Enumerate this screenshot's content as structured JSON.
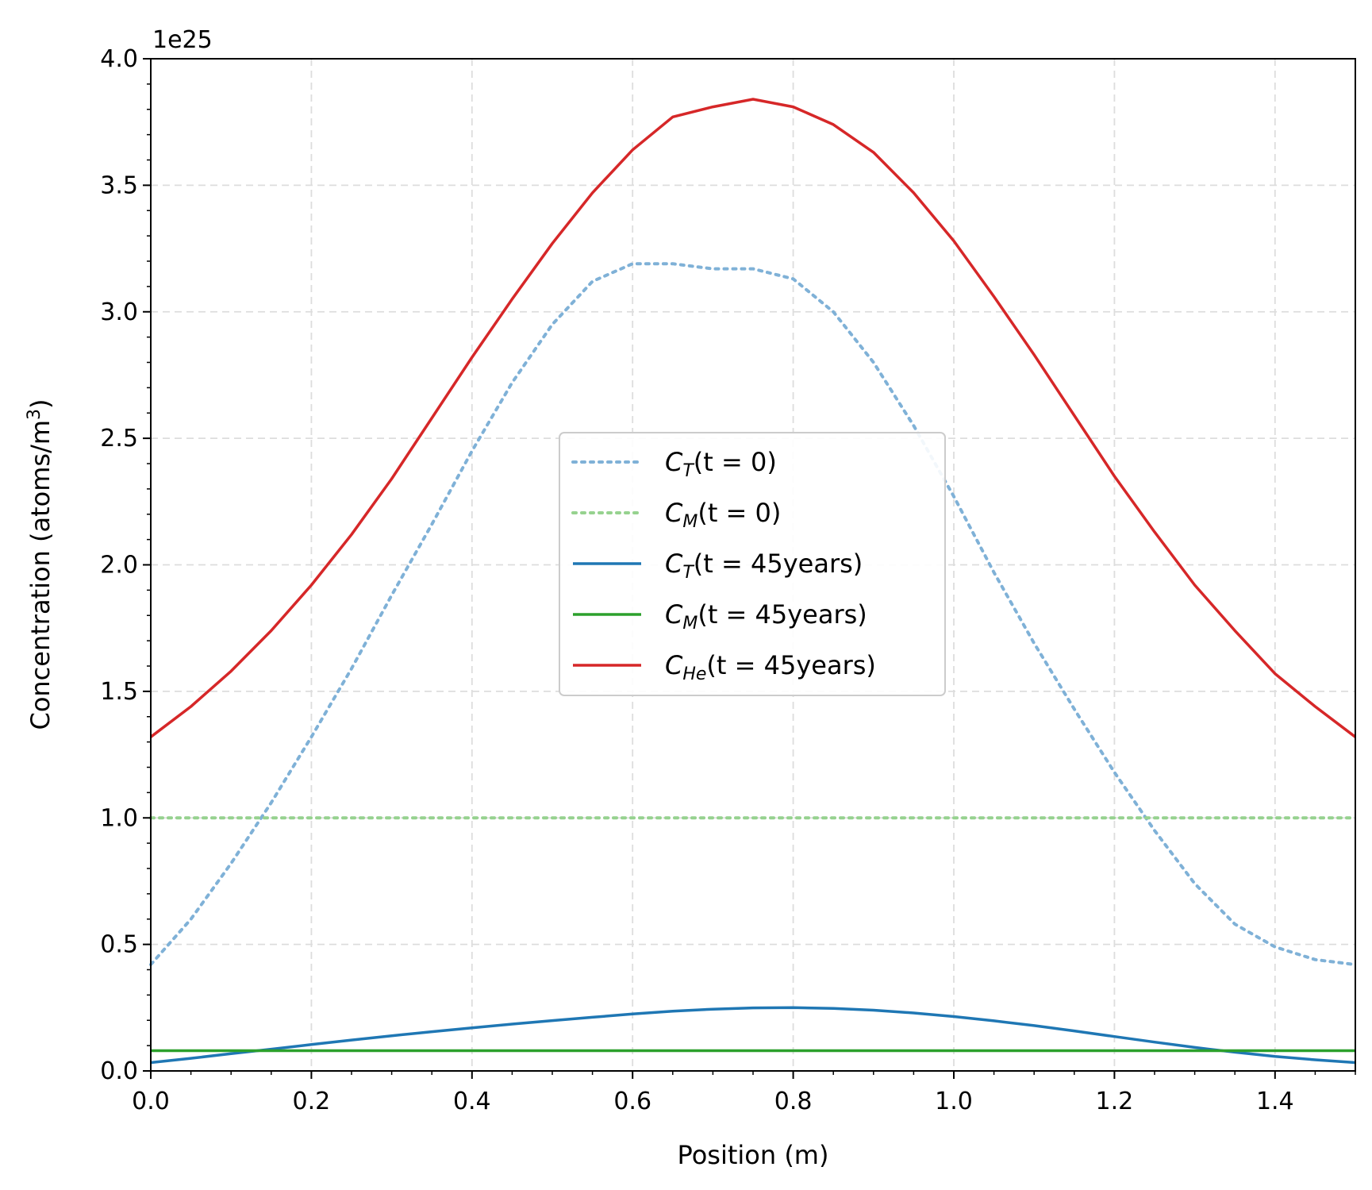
{
  "chart_data": {
    "type": "line",
    "xlabel": "Position (m)",
    "ylabel": "Concentration (atoms/m",
    "ylabel_sup": "3",
    "ylabel_end": ")",
    "offset_text": "1e25",
    "xlim": [
      0.0,
      1.5
    ],
    "ylim": [
      0.0,
      4.0
    ],
    "y_scale_multiplier": 1e+25,
    "x_ticks": [
      "0.0",
      "0.2",
      "0.4",
      "0.6",
      "0.8",
      "1.0",
      "1.2",
      "1.4"
    ],
    "y_ticks": [
      "0.0",
      "0.5",
      "1.0",
      "1.5",
      "2.0",
      "2.5",
      "3.0",
      "3.5",
      "4.0"
    ],
    "grid": true,
    "legend_position": "center",
    "x": [
      0.0,
      0.05,
      0.1,
      0.15,
      0.2,
      0.25,
      0.3,
      0.35,
      0.4,
      0.45,
      0.5,
      0.55,
      0.6,
      0.65,
      0.7,
      0.75,
      0.8,
      0.85,
      0.9,
      0.95,
      1.0,
      1.05,
      1.1,
      1.15,
      1.2,
      1.25,
      1.3,
      1.35,
      1.4,
      1.45,
      1.5
    ],
    "series": [
      {
        "name": "C_T(t=0)",
        "legend": {
          "sym": "C",
          "sub": "T",
          "rest": "(t = 0)"
        },
        "color": "#7fb1d7",
        "style": "dotted",
        "values": [
          0.42,
          0.6,
          0.82,
          1.06,
          1.32,
          1.59,
          1.88,
          2.16,
          2.45,
          2.72,
          2.95,
          3.12,
          3.19,
          3.19,
          3.17,
          3.17,
          3.13,
          3.0,
          2.8,
          2.55,
          2.27,
          1.97,
          1.69,
          1.43,
          1.18,
          0.95,
          0.74,
          0.58,
          0.49,
          0.44,
          0.42
        ]
      },
      {
        "name": "C_M(t=0)",
        "legend": {
          "sym": "C",
          "sub": "M",
          "rest": "(t = 0)"
        },
        "color": "#96d28f",
        "style": "dotted",
        "values": [
          1.0,
          1.0,
          1.0,
          1.0,
          1.0,
          1.0,
          1.0,
          1.0,
          1.0,
          1.0,
          1.0,
          1.0,
          1.0,
          1.0,
          1.0,
          1.0,
          1.0,
          1.0,
          1.0,
          1.0,
          1.0,
          1.0,
          1.0,
          1.0,
          1.0,
          1.0,
          1.0,
          1.0,
          1.0,
          1.0,
          1.0
        ]
      },
      {
        "name": "C_T(t=45years)",
        "legend": {
          "sym": "C",
          "sub": "T",
          "rest": "(t = 45years)"
        },
        "color": "#1f77b4",
        "style": "solid",
        "values": [
          0.033,
          0.05,
          0.068,
          0.086,
          0.104,
          0.122,
          0.139,
          0.155,
          0.17,
          0.185,
          0.199,
          0.212,
          0.225,
          0.236,
          0.244,
          0.249,
          0.25,
          0.247,
          0.24,
          0.229,
          0.215,
          0.198,
          0.179,
          0.158,
          0.136,
          0.114,
          0.093,
          0.074,
          0.057,
          0.044,
          0.033
        ]
      },
      {
        "name": "C_M(t=45years)",
        "legend": {
          "sym": "C",
          "sub": "M",
          "rest": "(t = 45years)"
        },
        "color": "#2ca02c",
        "style": "solid",
        "values": [
          0.08,
          0.08,
          0.08,
          0.08,
          0.08,
          0.08,
          0.08,
          0.08,
          0.08,
          0.08,
          0.08,
          0.08,
          0.08,
          0.08,
          0.08,
          0.08,
          0.08,
          0.08,
          0.08,
          0.08,
          0.08,
          0.08,
          0.08,
          0.08,
          0.08,
          0.08,
          0.08,
          0.08,
          0.08,
          0.08,
          0.08
        ]
      },
      {
        "name": "C_He(t=45years)",
        "legend": {
          "sym": "C",
          "sub": "He",
          "rest": "(t = 45years)"
        },
        "color": "#d62728",
        "style": "solid",
        "values": [
          1.32,
          1.44,
          1.58,
          1.74,
          1.92,
          2.12,
          2.34,
          2.58,
          2.82,
          3.05,
          3.27,
          3.47,
          3.64,
          3.77,
          3.81,
          3.84,
          3.81,
          3.74,
          3.63,
          3.47,
          3.28,
          3.06,
          2.83,
          2.59,
          2.35,
          2.13,
          1.92,
          1.74,
          1.57,
          1.44,
          1.32
        ]
      }
    ]
  }
}
